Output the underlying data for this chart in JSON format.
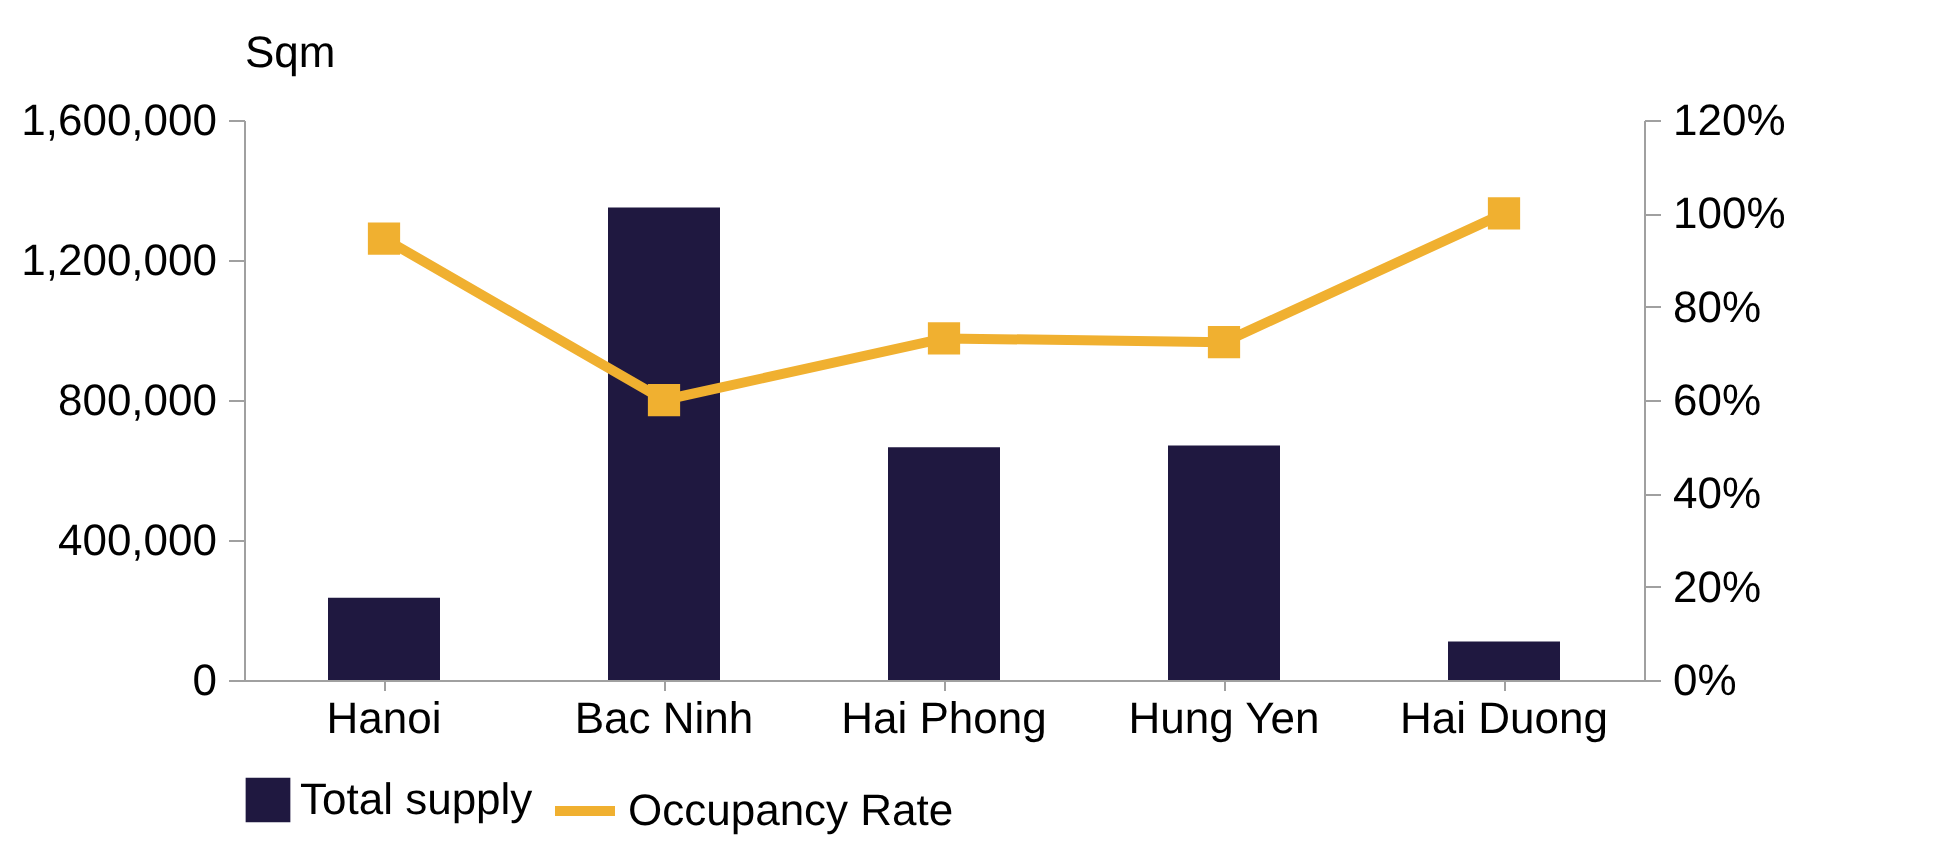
{
  "chart_data": {
    "type": "bar",
    "categories": [
      "Hanoi",
      "Bac Ninh",
      "Hai Phong",
      "Hung Yen",
      "Hai Duong"
    ],
    "ylabel": "Sqm",
    "ylim": [
      0,
      1600000
    ],
    "yticks": [
      0,
      {
        "value": 400000,
        "label": "400,000"
      },
      {
        "value": 800000,
        "label": "800,000"
      },
      {
        "value": 1200000,
        "label": "1,200,000"
      },
      {
        "value": 1600000,
        "label": "1,600,000"
      }
    ],
    "y2lim": [
      0,
      120
    ],
    "y2ticks": [
      {
        "value": 0,
        "label": "0%"
      },
      {
        "value": 20,
        "label": "20%"
      },
      {
        "value": 40,
        "label": "40%"
      },
      {
        "value": 60,
        "label": "60%"
      },
      {
        "value": 80,
        "label": "80%"
      },
      {
        "value": 100,
        "label": "100%"
      },
      {
        "value": 120,
        "label": "120%"
      }
    ],
    "grid": false,
    "legend": "bottom",
    "series": [
      {
        "name": "Total supply",
        "color": "#1f1840",
        "values": [
          235000,
          1350000,
          665000,
          670000,
          110000
        ]
      },
      {
        "name": "Occupancy Rate",
        "type": "line",
        "axis": "y2",
        "marker": "square",
        "color": "#f0b030",
        "values": [
          94.6,
          60,
          73.2,
          72.4,
          100
        ]
      }
    ]
  }
}
